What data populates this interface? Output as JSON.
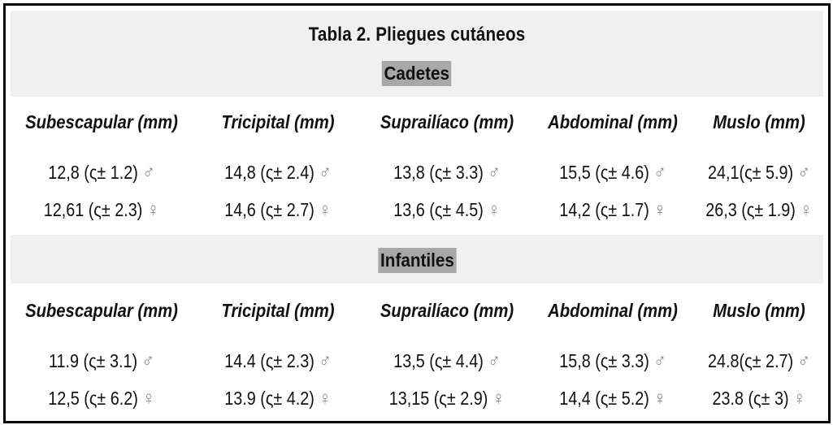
{
  "title": "Tabla 2. Pliegues cutáneos",
  "sections": [
    {
      "label": "Cadetes",
      "headers": [
        "Subescapular (mm)",
        "Tricipital (mm)",
        "Suprailíaco (mm)",
        "Abdominal (mm)",
        "Muslo (mm)"
      ],
      "male": [
        "12,8 (ς± 1.2)",
        "14,8 (ς± 2.4)",
        "13,8 (ς± 3.3)",
        "15,5 (ς± 4.6)",
        "24,1(ς± 5.9)"
      ],
      "female": [
        "12,61 (ς± 2.3)",
        "14,6 (ς± 2.7)",
        "13,6 (ς± 4.5)",
        "14,2 (ς± 1.7)",
        "26,3 (ς± 1.9)"
      ]
    },
    {
      "label": "Infantiles",
      "headers": [
        "Subescapular (mm)",
        "Tricipital (mm)",
        "Suprailíaco (mm)",
        "Abdominal (mm)",
        "Muslo (mm)"
      ],
      "male": [
        "11.9 (ς± 3.1)",
        "14.4 (ς± 2.3)",
        "13,5 (ς± 4.4)",
        "15,8 (ς± 3.3)",
        "24.8(ς± 2.7)"
      ],
      "female": [
        "12,5 (ς± 6.2)",
        "13.9 (ς± 4.2)",
        "13,15 (ς± 2.9)",
        "14,4 (ς± 5.2)",
        "23.8 (ς± 3)"
      ]
    }
  ],
  "symbols": {
    "male": "♂",
    "female": "♀"
  }
}
